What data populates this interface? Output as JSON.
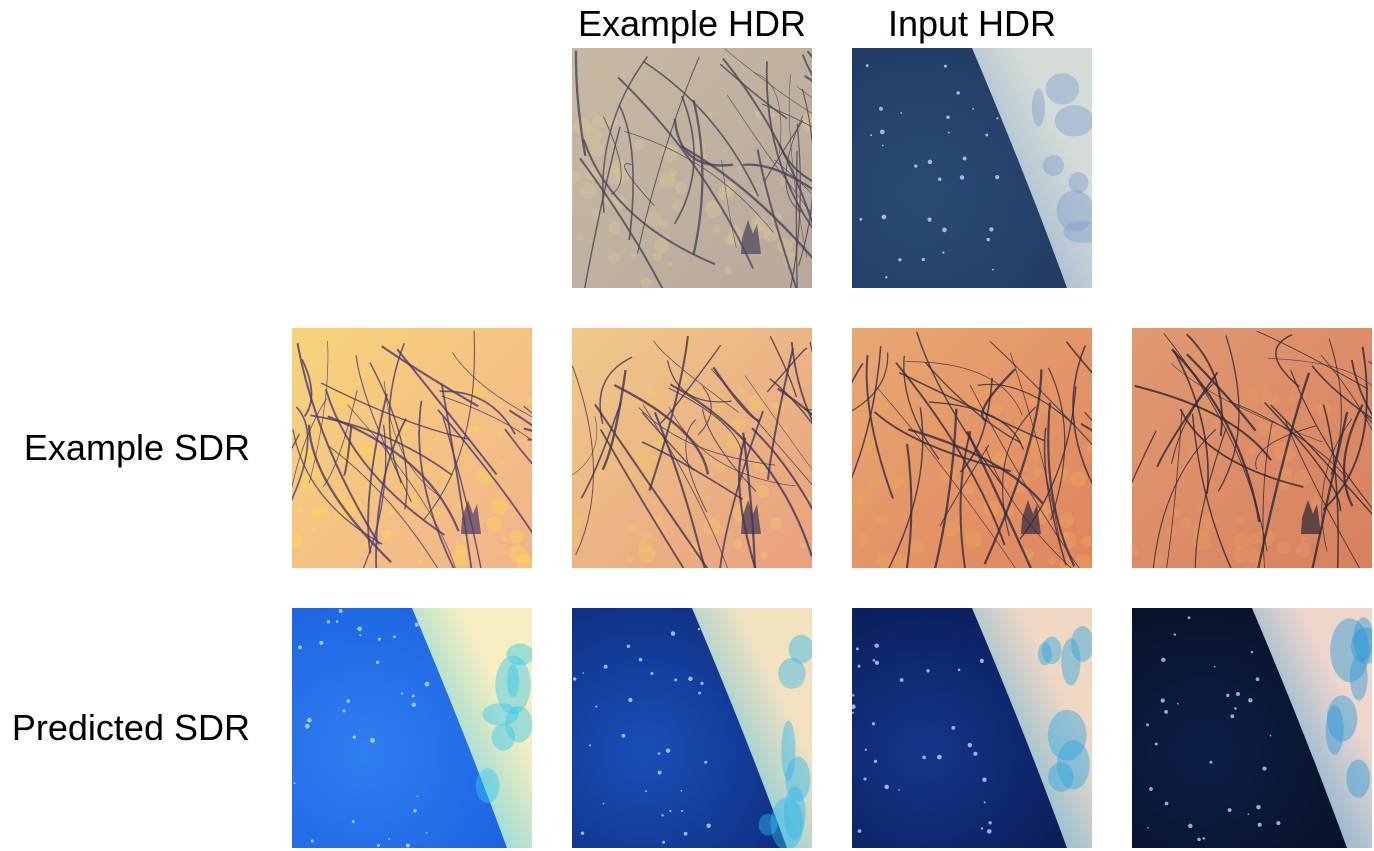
{
  "column_headers": {
    "example_hdr": "Example HDR",
    "input_hdr": "Input HDR"
  },
  "row_labels": {
    "example_sdr": "Example SDR",
    "predicted_sdr": "Predicted SDR"
  },
  "images": {
    "example_hdr": "tree-branches-muted",
    "input_hdr": "earth-from-space-muted",
    "example_sdr": [
      "tree-branches-bright",
      "tree-branches-warm",
      "tree-branches-saturated",
      "tree-branches-dark"
    ],
    "predicted_sdr": [
      "earth-from-space-bright",
      "earth-from-space-deep",
      "earth-from-space-darker",
      "earth-from-space-darkest"
    ]
  }
}
